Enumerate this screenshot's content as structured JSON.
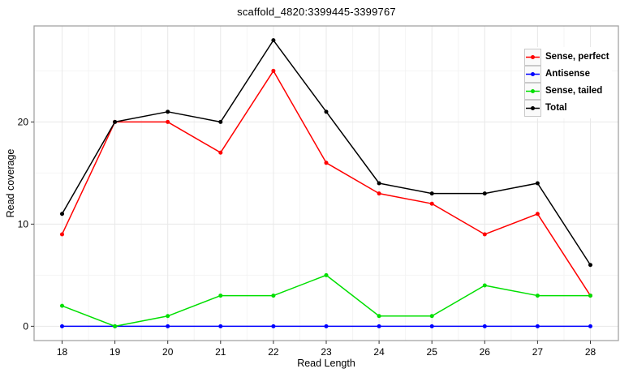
{
  "chart_data": {
    "type": "line",
    "title": "scaffold_4820:3399445-3399767",
    "xlabel": "Read Length",
    "ylabel": "Read coverage",
    "x": [
      18,
      19,
      20,
      21,
      22,
      23,
      24,
      25,
      26,
      27,
      28
    ],
    "series": [
      {
        "name": "Sense, perfect",
        "color": "#FF0000",
        "values": [
          9,
          20,
          20,
          17,
          25,
          16,
          13,
          12,
          9,
          11,
          3
        ]
      },
      {
        "name": "Antisense",
        "color": "#0000FF",
        "values": [
          0,
          0,
          0,
          0,
          0,
          0,
          0,
          0,
          0,
          0,
          0
        ]
      },
      {
        "name": "Sense, tailed",
        "color": "#00DF00",
        "values": [
          2,
          0,
          1,
          3,
          3,
          5,
          1,
          1,
          4,
          3,
          3
        ]
      },
      {
        "name": "Total",
        "color": "#000000",
        "values": [
          11,
          20,
          21,
          20,
          28,
          21,
          14,
          13,
          13,
          14,
          6
        ]
      }
    ],
    "xticks": [
      18,
      19,
      20,
      21,
      22,
      23,
      24,
      25,
      26,
      27,
      28
    ],
    "yticks": [
      0,
      10,
      20
    ],
    "yticks_minor": [
      5,
      15,
      25
    ],
    "xlim": [
      17.47,
      28.53
    ],
    "ylim": [
      -1.4,
      29.4
    ],
    "grid": true,
    "legend_position": "top-right-inside",
    "style_colors": {
      "panel_border": "#a3a3a3",
      "grid_major": "#e8e8e8",
      "grid_minor": "#f4f4f4",
      "tick_mark": "#333333"
    }
  }
}
